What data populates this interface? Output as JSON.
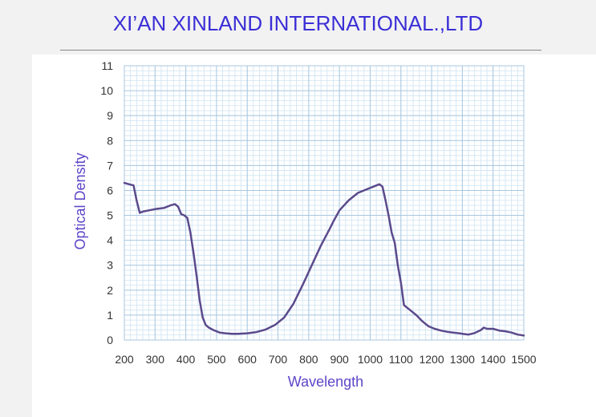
{
  "header": {
    "title": "XI’AN XINLAND INTERNATIONAL.,LTD"
  },
  "colors": {
    "title": "#3b2fd6",
    "curve": "#5b4a8c",
    "grid_minor": "#cfe3f2",
    "grid_major": "#a9c7e0",
    "axis_label": "#5f46c9"
  },
  "chart_data": {
    "type": "line",
    "xlabel": "Wavelength",
    "ylabel": "Optical Density",
    "xlim": [
      200,
      1500
    ],
    "ylim": [
      0,
      11
    ],
    "grid": true,
    "xticks": [
      "200",
      "300",
      "400",
      "500",
      "600",
      "700",
      "800",
      "900",
      "1000",
      "1100",
      "1200",
      "1300",
      "1400",
      "1500"
    ],
    "yticks": [
      "0",
      "1",
      "2",
      "3",
      "4",
      "5",
      "6",
      "7",
      "8",
      "9",
      "10",
      "11"
    ],
    "series": [
      {
        "x": [
          200,
          215,
          230,
          240,
          250,
          260,
          280,
          300,
          330,
          350,
          365,
          375,
          385,
          395,
          405,
          415,
          425,
          435,
          445,
          455,
          465,
          475,
          490,
          510,
          530,
          550,
          570,
          600,
          630,
          660,
          690,
          720,
          750,
          780,
          810,
          840,
          870,
          880,
          900,
          930,
          960,
          990,
          1010,
          1030,
          1040,
          1050,
          1060,
          1070,
          1080,
          1090,
          1100,
          1110,
          1130,
          1150,
          1170,
          1190,
          1210,
          1230,
          1250,
          1270,
          1290,
          1300,
          1320,
          1340,
          1360,
          1370,
          1380,
          1400,
          1420,
          1440,
          1460,
          1480,
          1500
        ],
        "y": [
          6.3,
          6.25,
          6.2,
          5.6,
          5.1,
          5.15,
          5.2,
          5.25,
          5.3,
          5.4,
          5.45,
          5.35,
          5.05,
          5.0,
          4.9,
          4.3,
          3.5,
          2.6,
          1.6,
          0.9,
          0.6,
          0.5,
          0.4,
          0.3,
          0.27,
          0.25,
          0.25,
          0.27,
          0.32,
          0.42,
          0.6,
          0.9,
          1.45,
          2.2,
          3.0,
          3.8,
          4.5,
          4.75,
          5.2,
          5.6,
          5.9,
          6.05,
          6.15,
          6.25,
          6.15,
          5.6,
          5.0,
          4.3,
          3.9,
          3.0,
          2.3,
          1.4,
          1.2,
          1.0,
          0.75,
          0.55,
          0.45,
          0.38,
          0.33,
          0.3,
          0.27,
          0.25,
          0.22,
          0.28,
          0.4,
          0.5,
          0.45,
          0.45,
          0.38,
          0.35,
          0.3,
          0.22,
          0.18
        ]
      }
    ]
  }
}
